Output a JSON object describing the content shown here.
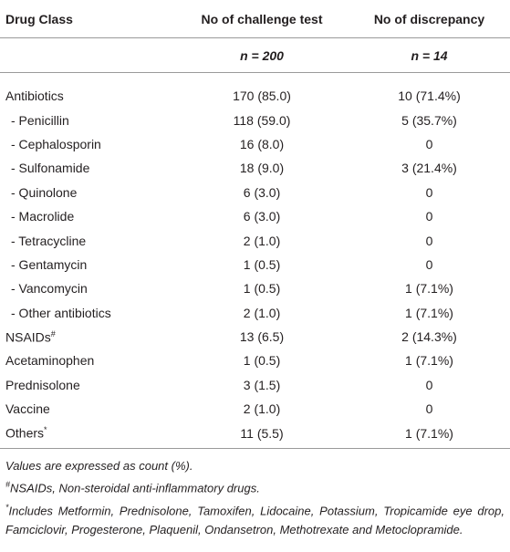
{
  "table": {
    "header": [
      "Drug Class",
      "No of challenge test",
      "No of discrepancy"
    ],
    "subheader": [
      "n = 200",
      "n = 14"
    ],
    "rows": [
      {
        "label": "Antibiotics",
        "level": 0,
        "cells": [
          "170 (85.0)",
          "10 (71.4%)"
        ]
      },
      {
        "label": "- Penicillin",
        "level": 1,
        "cells": [
          "118 (59.0)",
          "5 (35.7%)"
        ]
      },
      {
        "label": "- Cephalosporin",
        "level": 1,
        "cells": [
          "16 (8.0)",
          "0"
        ]
      },
      {
        "label": "- Sulfonamide",
        "level": 1,
        "cells": [
          "18 (9.0)",
          "3 (21.4%)"
        ]
      },
      {
        "label": "- Quinolone",
        "level": 1,
        "cells": [
          "6 (3.0)",
          "0"
        ]
      },
      {
        "label": "- Macrolide",
        "level": 1,
        "cells": [
          "6 (3.0)",
          "0"
        ]
      },
      {
        "label": "- Tetracycline",
        "level": 1,
        "cells": [
          "2 (1.0)",
          "0"
        ]
      },
      {
        "label": "- Gentamycin",
        "level": 1,
        "cells": [
          "1 (0.5)",
          "0"
        ]
      },
      {
        "label": "- Vancomycin",
        "level": 1,
        "cells": [
          "1 (0.5)",
          "1 (7.1%)"
        ]
      },
      {
        "label": "- Other antibiotics",
        "level": 1,
        "cells": [
          "2 (1.0)",
          "1 (7.1%)"
        ]
      },
      {
        "label": "NSAIDs",
        "mark": "#",
        "level": 0,
        "cells": [
          "13 (6.5)",
          "2 (14.3%)"
        ]
      },
      {
        "label": "Acetaminophen",
        "level": 0,
        "cells": [
          "1 (0.5)",
          "1 (7.1%)"
        ]
      },
      {
        "label": "Prednisolone",
        "level": 0,
        "cells": [
          "3 (1.5)",
          "0"
        ]
      },
      {
        "label": "Vaccine",
        "level": 0,
        "cells": [
          "2 (1.0)",
          "0"
        ]
      },
      {
        "label": "Others",
        "mark": "*",
        "level": 0,
        "cells": [
          "11 (5.5)",
          "1 (7.1%)"
        ]
      }
    ]
  },
  "footnotes": [
    {
      "text": "Values are expressed as count (%)."
    },
    {
      "mark": "#",
      "text": "NSAIDs, Non-steroidal anti-inflammatory drugs."
    },
    {
      "mark": "*",
      "text": "Includes Metformin, Prednisolone, Tamoxifen, Lidocaine, Potassium, Tropicamide eye drop, Famciclovir, Progesterone, Plaquenil, Ondansetron, Methotrexate and Metoclopramide."
    }
  ]
}
